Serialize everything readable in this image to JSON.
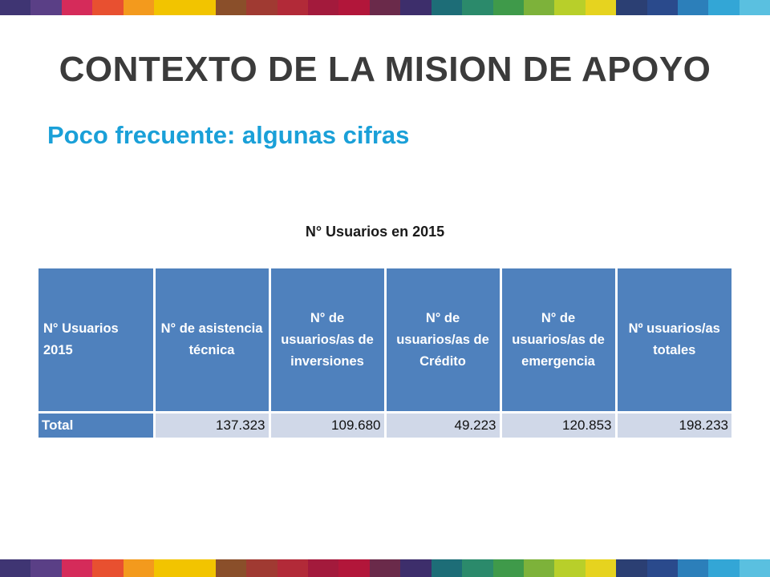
{
  "slide": {
    "title": "CONTEXTO DE LA MISION DE APOYO",
    "subtitle": "Poco frecuente: algunas cifras",
    "caption": "N° Usuarios en 2015"
  },
  "table": {
    "headers": [
      "N° Usuarios 2015",
      "N° de asistencia técnica",
      "N° de usuarios/as de inversiones",
      "N° de usuarios/as de Crédito",
      "N° de usuarios/as de emergencia",
      "Nº usuarios/as totales"
    ],
    "rows": [
      {
        "label": "Total",
        "values": [
          "137.323",
          "109.680",
          "49.223",
          "120.853",
          "198.233"
        ]
      }
    ]
  },
  "colors": {
    "header_fill": "#4f81bd",
    "row_fill": "#d0d8e8",
    "title": "#3b3b3b",
    "subtitle": "#1aa0d8"
  },
  "decor": {
    "stripe_colors": [
      "#3f3573",
      "#5a3f86",
      "#d52b5a",
      "#e85030",
      "#f39a1d",
      "#f2c400",
      "#f2c400",
      "#8a4f2a",
      "#a03a32",
      "#b22a38",
      "#a31a3c",
      "#b2163a",
      "#6a2a4a",
      "#3d2e6b",
      "#1d6d77",
      "#2b8a6b",
      "#3f9a4a",
      "#7db23a",
      "#b8cf2a",
      "#e6d31f",
      "#2b3f73",
      "#2a4a8c",
      "#2c7fba",
      "#33a6d6",
      "#5ac0e0"
    ]
  }
}
